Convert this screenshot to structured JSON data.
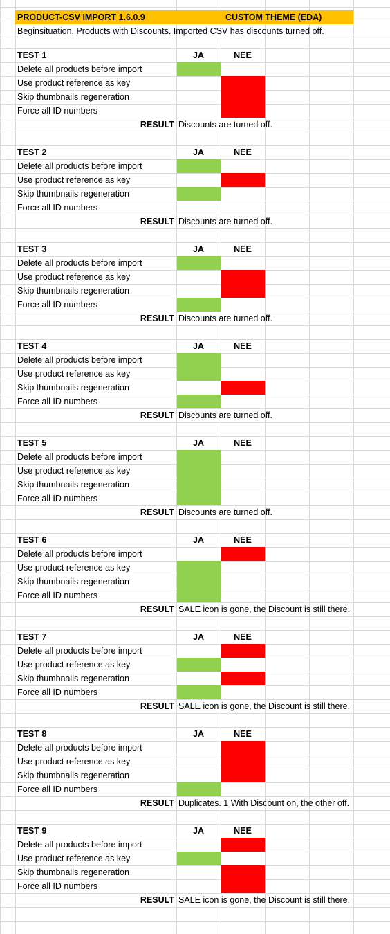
{
  "colors": {
    "yes": "#92d050",
    "no": "#ff0000",
    "header": "#ffc000",
    "grid": "#d9d9d9"
  },
  "header": {
    "title": "PRODUCT-CSV IMPORT 1.6.0.9",
    "theme": "CUSTOM THEME (EDA)",
    "description": "Beginsituation. Products with Discounts. Imported CSV has discounts turned off."
  },
  "labels": {
    "yes": "JA",
    "no": "NEE",
    "result": "RESULT",
    "options": [
      "Delete all products before import",
      "Use product reference as key",
      "Skip thumbnails regeneration",
      "Force all ID numbers"
    ]
  },
  "tests": [
    {
      "name": "TEST 1",
      "answers": [
        "ja",
        "nee",
        "nee",
        "nee"
      ],
      "result": "Discounts are turned off."
    },
    {
      "name": "TEST 2",
      "answers": [
        "ja",
        "nee",
        "ja",
        "none"
      ],
      "result": "Discounts are turned off."
    },
    {
      "name": "TEST 3",
      "answers": [
        "ja",
        "nee",
        "nee",
        "ja"
      ],
      "result": "Discounts are turned off."
    },
    {
      "name": "TEST 4",
      "answers": [
        "ja",
        "ja",
        "nee",
        "ja"
      ],
      "result": "Discounts are turned off."
    },
    {
      "name": "TEST 5",
      "answers": [
        "ja",
        "ja",
        "ja",
        "ja"
      ],
      "result": "Discounts are turned off."
    },
    {
      "name": "TEST 6",
      "answers": [
        "nee",
        "ja",
        "ja",
        "ja"
      ],
      "result": "SALE icon is gone, the Discount is still there."
    },
    {
      "name": "TEST 7",
      "answers": [
        "nee",
        "ja",
        "nee",
        "ja"
      ],
      "result": "SALE icon is gone, the Discount is still there."
    },
    {
      "name": "TEST 8",
      "answers": [
        "nee",
        "nee",
        "nee",
        "ja"
      ],
      "result": "Duplicates. 1 With Discount on, the other off."
    },
    {
      "name": "TEST 9",
      "answers": [
        "nee",
        "ja",
        "nee",
        "nee"
      ],
      "result": "SALE icon is gone, the Discount is still there."
    }
  ]
}
